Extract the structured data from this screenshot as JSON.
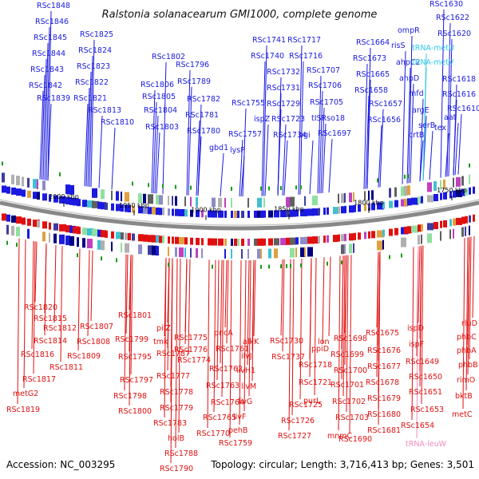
{
  "title": "Ralstonia solanacearum GMI1000, complete genome",
  "footer": {
    "accession": "Accession: NC_003295",
    "summary": "Topology: circular; Length: 3,716,413 bp; Genes: 3,501"
  },
  "colors": {
    "forward": "#1a1ae0",
    "reverse": "#e01010",
    "trna_forward": "#30c8e8",
    "trna_reverse": "#f08cc0",
    "backbone": "#888888"
  },
  "kbp_ticks": [
    {
      "label": "2000 kbp"
    },
    {
      "label": "1950 kbp"
    },
    {
      "label": "1900 kbp"
    },
    {
      "label": "1850 kbp"
    },
    {
      "label": "1800 kbp"
    },
    {
      "label": "1750 kbp"
    }
  ],
  "top_labels": [
    {
      "text": "RSc1848",
      "kind": "gene"
    },
    {
      "text": "RSc1846",
      "kind": "gene"
    },
    {
      "text": "RSc1845",
      "kind": "gene"
    },
    {
      "text": "RSc1844",
      "kind": "gene"
    },
    {
      "text": "RSc1843",
      "kind": "gene"
    },
    {
      "text": "RSc1842",
      "kind": "gene"
    },
    {
      "text": "RSc1839",
      "kind": "gene"
    },
    {
      "text": "RSc1825",
      "kind": "gene"
    },
    {
      "text": "RSc1824",
      "kind": "gene"
    },
    {
      "text": "RSc1823",
      "kind": "gene"
    },
    {
      "text": "RSc1822",
      "kind": "gene"
    },
    {
      "text": "RSc1821",
      "kind": "gene"
    },
    {
      "text": "RSc1813",
      "kind": "gene"
    },
    {
      "text": "RSc1810",
      "kind": "gene"
    },
    {
      "text": "RSc1802",
      "kind": "gene"
    },
    {
      "text": "RSc1796",
      "kind": "gene"
    },
    {
      "text": "RSc1806",
      "kind": "gene"
    },
    {
      "text": "RSc1789",
      "kind": "gene"
    },
    {
      "text": "RSc1805",
      "kind": "gene"
    },
    {
      "text": "RSc1782",
      "kind": "gene"
    },
    {
      "text": "RSc1804",
      "kind": "gene"
    },
    {
      "text": "RSc1781",
      "kind": "gene"
    },
    {
      "text": "RSc1803",
      "kind": "gene"
    },
    {
      "text": "RSc1780",
      "kind": "gene"
    },
    {
      "text": "gbd1",
      "kind": "gene"
    },
    {
      "text": "lysP",
      "kind": "gene"
    },
    {
      "text": "RSc1755",
      "kind": "gene"
    },
    {
      "text": "RSc1757",
      "kind": "gene"
    },
    {
      "text": "RSc1741",
      "kind": "gene"
    },
    {
      "text": "RSc1717",
      "kind": "gene"
    },
    {
      "text": "RSc1740",
      "kind": "gene"
    },
    {
      "text": "RSc1716",
      "kind": "gene"
    },
    {
      "text": "RSc1732",
      "kind": "gene"
    },
    {
      "text": "RSc1707",
      "kind": "gene"
    },
    {
      "text": "RSc1731",
      "kind": "gene"
    },
    {
      "text": "RSc1706",
      "kind": "gene"
    },
    {
      "text": "RSc1729",
      "kind": "gene"
    },
    {
      "text": "RSc1705",
      "kind": "gene"
    },
    {
      "text": "ispZ",
      "kind": "gene"
    },
    {
      "text": "RSc1723",
      "kind": "gene"
    },
    {
      "text": "tISRso18",
      "kind": "gene"
    },
    {
      "text": "RSc1734",
      "kind": "gene"
    },
    {
      "text": "pgi",
      "kind": "gene"
    },
    {
      "text": "RSc1697",
      "kind": "gene"
    },
    {
      "text": "RSc1664",
      "kind": "gene"
    },
    {
      "text": "RSc1673",
      "kind": "gene"
    },
    {
      "text": "RSc1665",
      "kind": "gene"
    },
    {
      "text": "RSc1658",
      "kind": "gene"
    },
    {
      "text": "RSc1657",
      "kind": "gene"
    },
    {
      "text": "RSc1656",
      "kind": "gene"
    },
    {
      "text": "ompR",
      "kind": "gene"
    },
    {
      "text": "risS",
      "kind": "gene"
    },
    {
      "text": "ahpC2",
      "kind": "gene"
    },
    {
      "text": "ahpD",
      "kind": "gene"
    },
    {
      "text": "mfd",
      "kind": "gene"
    },
    {
      "text": "argE",
      "kind": "gene"
    },
    {
      "text": "serB",
      "kind": "gene"
    },
    {
      "text": "crtB",
      "kind": "gene"
    },
    {
      "text": "RSc1630",
      "kind": "gene"
    },
    {
      "text": "RSc1622",
      "kind": "gene"
    },
    {
      "text": "RSc1620",
      "kind": "gene"
    },
    {
      "text": "tRNA-metU",
      "kind": "trna"
    },
    {
      "text": "tRNA-metV",
      "kind": "trna"
    },
    {
      "text": "RSc1618",
      "kind": "gene"
    },
    {
      "text": "RSc1616",
      "kind": "gene"
    },
    {
      "text": "RSc1610",
      "kind": "gene"
    },
    {
      "text": "aat",
      "kind": "gene"
    },
    {
      "text": "tex",
      "kind": "gene"
    }
  ],
  "bottom_labels": [
    {
      "text": "RSc1820",
      "kind": "gene"
    },
    {
      "text": "RSc1815",
      "kind": "gene"
    },
    {
      "text": "RSc1812",
      "kind": "gene"
    },
    {
      "text": "RSc1814",
      "kind": "gene"
    },
    {
      "text": "RSc1816",
      "kind": "gene"
    },
    {
      "text": "RSc1811",
      "kind": "gene"
    },
    {
      "text": "RSc1817",
      "kind": "gene"
    },
    {
      "text": "metG2",
      "kind": "gene"
    },
    {
      "text": "RSc1819",
      "kind": "gene"
    },
    {
      "text": "RSc1807",
      "kind": "gene"
    },
    {
      "text": "RSc1808",
      "kind": "gene"
    },
    {
      "text": "RSc1809",
      "kind": "gene"
    },
    {
      "text": "RSc1801",
      "kind": "gene"
    },
    {
      "text": "RSc1799",
      "kind": "gene"
    },
    {
      "text": "RSc1795",
      "kind": "gene"
    },
    {
      "text": "RSc1797",
      "kind": "gene"
    },
    {
      "text": "RSc1798",
      "kind": "gene"
    },
    {
      "text": "RSc1800",
      "kind": "gene"
    },
    {
      "text": "pilZ",
      "kind": "gene"
    },
    {
      "text": "tmk",
      "kind": "gene"
    },
    {
      "text": "RSc1787",
      "kind": "gene"
    },
    {
      "text": "RSc1776",
      "kind": "gene"
    },
    {
      "text": "RSc1777",
      "kind": "gene"
    },
    {
      "text": "RSc1778",
      "kind": "gene"
    },
    {
      "text": "RSc1779",
      "kind": "gene"
    },
    {
      "text": "RSc1783",
      "kind": "gene"
    },
    {
      "text": "holB",
      "kind": "gene"
    },
    {
      "text": "RSc1788",
      "kind": "gene"
    },
    {
      "text": "RSc1790",
      "kind": "gene"
    },
    {
      "text": "RSc1775",
      "kind": "gene"
    },
    {
      "text": "RSc1774",
      "kind": "gene"
    },
    {
      "text": "pncA",
      "kind": "gene"
    },
    {
      "text": "RSc1761",
      "kind": "gene"
    },
    {
      "text": "RSc1762",
      "kind": "gene"
    },
    {
      "text": "RSc1763",
      "kind": "gene"
    },
    {
      "text": "RSc1764",
      "kind": "gene"
    },
    {
      "text": "RSc1765",
      "kind": "gene"
    },
    {
      "text": "RSc1770",
      "kind": "gene"
    },
    {
      "text": "RSc1759",
      "kind": "gene"
    },
    {
      "text": "alkK",
      "kind": "gene"
    },
    {
      "text": "ilvJ",
      "kind": "gene"
    },
    {
      "text": "livH1",
      "kind": "gene"
    },
    {
      "text": "livM",
      "kind": "gene"
    },
    {
      "text": "livG",
      "kind": "gene"
    },
    {
      "text": "livF",
      "kind": "gene"
    },
    {
      "text": "pehB",
      "kind": "gene"
    },
    {
      "text": "RSc1737",
      "kind": "gene"
    },
    {
      "text": "RSc1730",
      "kind": "gene"
    },
    {
      "text": "RSc1718",
      "kind": "gene"
    },
    {
      "text": "RSc1721",
      "kind": "gene"
    },
    {
      "text": "lon",
      "kind": "gene"
    },
    {
      "text": "ppiD",
      "kind": "gene"
    },
    {
      "text": "purL",
      "kind": "gene"
    },
    {
      "text": "RSc1725",
      "kind": "gene"
    },
    {
      "text": "RSc1726",
      "kind": "gene"
    },
    {
      "text": "RSc1727",
      "kind": "gene"
    },
    {
      "text": "RSc1698",
      "kind": "gene"
    },
    {
      "text": "RSc1699",
      "kind": "gene"
    },
    {
      "text": "RSc1700",
      "kind": "gene"
    },
    {
      "text": "RSc1701",
      "kind": "gene"
    },
    {
      "text": "RSc1702",
      "kind": "gene"
    },
    {
      "text": "RSc1703",
      "kind": "gene"
    },
    {
      "text": "mnmC",
      "kind": "gene"
    },
    {
      "text": "RSc1690",
      "kind": "gene"
    },
    {
      "text": "RSc1675",
      "kind": "gene"
    },
    {
      "text": "RSc1676",
      "kind": "gene"
    },
    {
      "text": "RSc1677",
      "kind": "gene"
    },
    {
      "text": "RSc1678",
      "kind": "gene"
    },
    {
      "text": "RSc1679",
      "kind": "gene"
    },
    {
      "text": "RSc1680",
      "kind": "gene"
    },
    {
      "text": "RSc1681",
      "kind": "gene"
    },
    {
      "text": "ispD",
      "kind": "gene"
    },
    {
      "text": "ispF",
      "kind": "gene"
    },
    {
      "text": "RSc1649",
      "kind": "gene"
    },
    {
      "text": "RSc1650",
      "kind": "gene"
    },
    {
      "text": "RSc1651",
      "kind": "gene"
    },
    {
      "text": "RSc1653",
      "kind": "gene"
    },
    {
      "text": "RSc1654",
      "kind": "gene"
    },
    {
      "text": "tRNA-leuW",
      "kind": "trna"
    },
    {
      "text": "rluD",
      "kind": "gene"
    },
    {
      "text": "phbC",
      "kind": "gene"
    },
    {
      "text": "phbA",
      "kind": "gene"
    },
    {
      "text": "phbB",
      "kind": "gene"
    },
    {
      "text": "rimO",
      "kind": "gene"
    },
    {
      "text": "bktB",
      "kind": "gene"
    },
    {
      "text": "metC",
      "kind": "gene"
    }
  ]
}
